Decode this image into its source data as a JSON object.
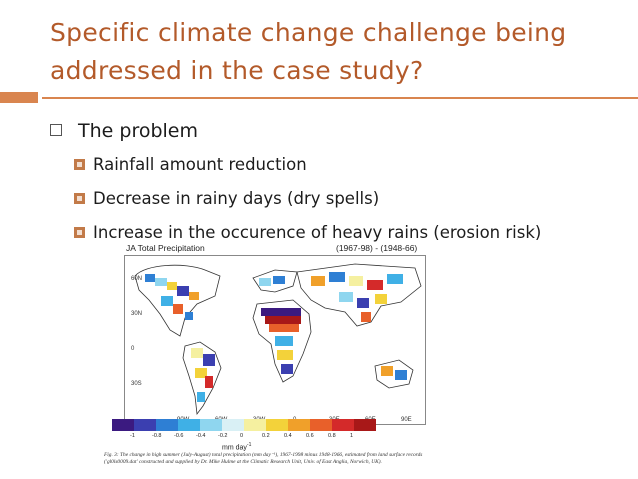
{
  "slide": {
    "title": "Specific climate change challenge being addressed in the case study?",
    "bullet": "The problem",
    "subbullets": [
      "Rainfall amount reduction",
      "Decrease in rainy days (dry spells)",
      "Increase in the occurence of heavy rains (erosion risk)"
    ]
  },
  "figure": {
    "title": "JA Total Precipitation",
    "period": "(1967-98) - (1948-66)",
    "lat_labels": [
      "60N",
      "30N",
      "0",
      "30S"
    ],
    "lon_labels": [
      "90W",
      "60W",
      "30W",
      "0",
      "30E",
      "60E",
      "90E"
    ],
    "colorbar_ticks": [
      "-1",
      "-0.8",
      "-0.6",
      "-0.4",
      "-0.2",
      "0",
      "0.2",
      "0.4",
      "0.6",
      "0.8",
      "1"
    ],
    "colorbar_colors": [
      "#3b1a80",
      "#3b3fb0",
      "#2e7fd4",
      "#3fb0e6",
      "#8fd6ef",
      "#d9f0f5",
      "#f5f0a0",
      "#f3d23a",
      "#f0a02a",
      "#e8602a",
      "#d42a2a",
      "#a81818"
    ],
    "unit": "mm day",
    "caption": "Fig. 3: The change in high summer (July-August) total precipitation (mm day⁻¹), 1967-1998 minus 1948-1966, estimated from land surface records ('gl0ls0009.dat' constructed and supplied by Dr. Mike Hulme at the Climatic Research Unit, Univ. of East Anglia, Norwich, UK)."
  }
}
